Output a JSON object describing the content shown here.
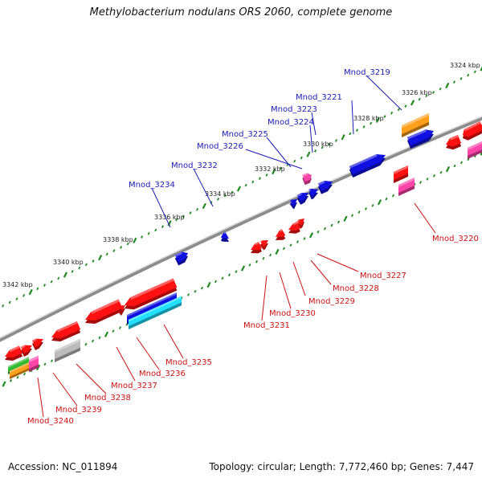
{
  "title": "Methylobacterium nodulans ORS 2060, complete genome",
  "footer": {
    "accession": "Accession: NC_011894",
    "topology": "Topology: circular; Length: 7,772,460 bp; Genes: 7,447"
  },
  "colors": {
    "backbone": "#8c8c8c",
    "tick": "#1f8a1f",
    "forward_label": "#1a1ab4",
    "reverse_label": "#cc1111",
    "red": "#ff1111",
    "blue": "#1010e0",
    "magenta": "#ff44aa",
    "cyan": "#22e0ff",
    "orange": "#ff9f1a",
    "green": "#33bb33",
    "gray": "#bbbbbb"
  },
  "scale_labels": [
    "3324 kbp",
    "3326 kbp",
    "3328 kbp",
    "3330 kbp",
    "3332 kbp",
    "3334 kbp",
    "3336 kbp",
    "3338 kbp",
    "3340 kbp",
    "3342 kbp"
  ],
  "forward_genes": [
    "Mnod_3219",
    "Mnod_3221",
    "Mnod_3223",
    "Mnod_3224",
    "Mnod_3225",
    "Mnod_3226",
    "Mnod_3232",
    "Mnod_3234"
  ],
  "reverse_genes": [
    "Mnod_3220",
    "Mnod_3227",
    "Mnod_3228",
    "Mnod_3229",
    "Mnod_3230",
    "Mnod_3231",
    "Mnod_3235",
    "Mnod_3236",
    "Mnod_3237",
    "Mnod_3238",
    "Mnod_3239",
    "Mnod_3240"
  ]
}
